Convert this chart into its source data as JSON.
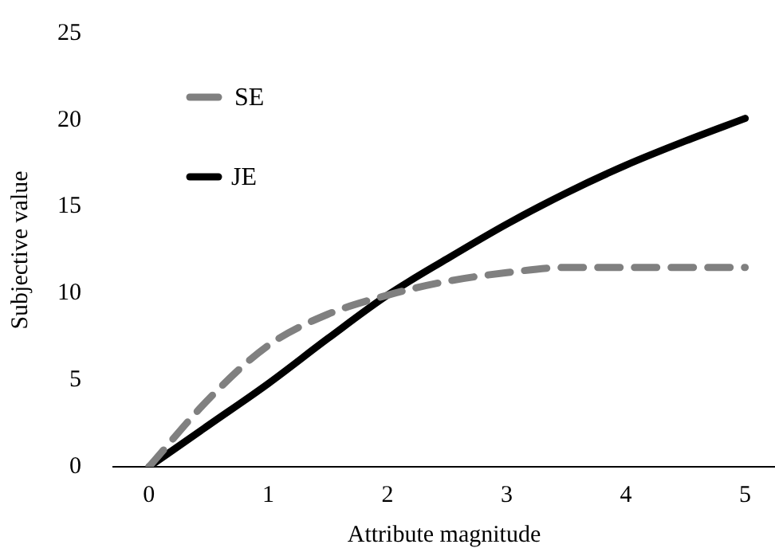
{
  "chart_data": {
    "type": "line",
    "xlabel": "Attribute magnitude",
    "ylabel": "Subjective value",
    "xlim": [
      -0.3,
      5.25
    ],
    "xticks": [
      0,
      1,
      2,
      3,
      4,
      5
    ],
    "ylim": [
      0,
      25
    ],
    "yticks": [
      0,
      5,
      10,
      15,
      20,
      25
    ],
    "grid": false,
    "legend": "top left",
    "marker": "none",
    "series": [
      {
        "name": "SE",
        "color": "#808080",
        "line_style": "dashed",
        "x": [
          0,
          0.5,
          1,
          1.5,
          2,
          2.5,
          3,
          3.5,
          4,
          4.5,
          5
        ],
        "values": [
          0,
          3.9,
          7,
          8.8,
          9.9,
          10.7,
          11.2,
          11.5,
          11.5,
          11.5,
          11.5
        ]
      },
      {
        "name": "JE",
        "color": "#000000",
        "line_style": "solid",
        "x": [
          0,
          0.5,
          1,
          1.5,
          2,
          2.5,
          3,
          3.5,
          4,
          4.5,
          5
        ],
        "values": [
          0,
          2.4,
          4.8,
          7.4,
          9.9,
          12,
          14,
          15.8,
          17.4,
          18.8,
          20.1
        ]
      }
    ]
  }
}
